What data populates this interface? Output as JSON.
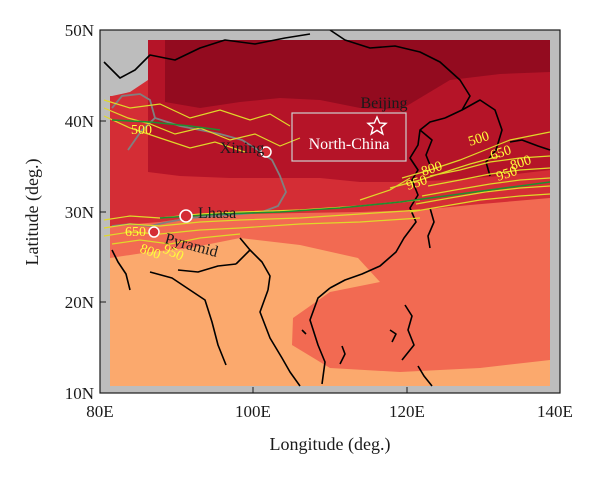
{
  "map": {
    "axes": {
      "xlabel": "Longitude (deg.)",
      "ylabel": "Latitude (deg.)",
      "x_ticks": [
        "80E",
        "100E",
        "120E",
        "140E"
      ],
      "y_ticks": [
        "50N",
        "40N",
        "30N",
        "20N",
        "10N"
      ],
      "lon_range": [
        80,
        140
      ],
      "lat_range": [
        10,
        50
      ]
    },
    "places": {
      "beijing": "Beijing",
      "xining": "Xining",
      "lhasa": "Lhasa",
      "pyramid": "Pyramid",
      "north_china": "North-China"
    },
    "contour_labels": {
      "c500_west": "500",
      "c650_west": "650",
      "c800_west": "800",
      "c950_west": "950",
      "c500_east": "500",
      "c650_east": "650",
      "c800_east": "800",
      "c950_east": "950",
      "c800_central": "800",
      "c950_central": "950"
    },
    "colors": {
      "background_gray": "#bdbdbd",
      "darkest_red": "#930b1f",
      "dark_red": "#b51428",
      "red": "#d42d35",
      "salmon": "#f26a52",
      "light_orange": "#fba96d",
      "contour_yellow": "#e0d82a",
      "coastline": "#000000",
      "plateau_boundary": "#808080",
      "green_line": "#1f8f2f"
    }
  }
}
